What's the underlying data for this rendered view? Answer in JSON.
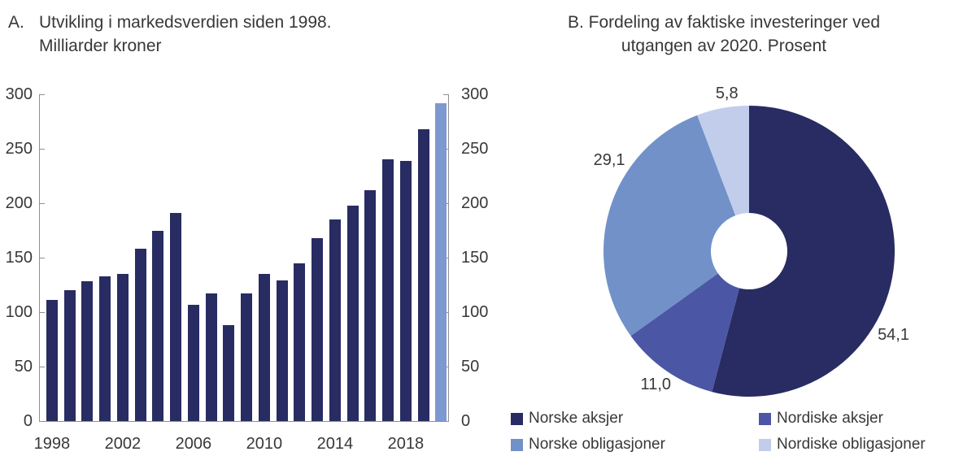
{
  "figure": {
    "panel_a": {
      "label": "A.",
      "title_line1": "Utvikling i markedsverdien siden 1998.",
      "title_line2": "Milliarder kroner"
    },
    "panel_b": {
      "title_line1": "B. Fordeling av faktiske investeringer ved",
      "title_line2": "utgangen av 2020. Prosent"
    }
  },
  "colors": {
    "navy": "#282c62",
    "medium_blue": "#4b57a4",
    "steel_blue": "#7191c8",
    "light_lavender": "#c2cdeb",
    "highlight_bar": "#7e99d1",
    "axis": "#8f8f8f",
    "text": "#383838"
  },
  "chart_data": [
    {
      "type": "bar",
      "title": "A. Utvikling i markedsverdien siden 1998. Milliarder kroner",
      "xlabel": "",
      "ylabel": "Milliarder kroner",
      "categories": [
        1998,
        1999,
        2000,
        2001,
        2002,
        2003,
        2004,
        2005,
        2006,
        2007,
        2008,
        2009,
        2010,
        2011,
        2012,
        2013,
        2014,
        2015,
        2016,
        2017,
        2018,
        2019,
        2020
      ],
      "values": [
        111,
        120,
        128,
        133,
        135,
        158,
        175,
        191,
        107,
        117,
        88,
        117,
        135,
        129,
        145,
        168,
        185,
        198,
        212,
        240,
        239,
        268,
        292
      ],
      "ylim": [
        0,
        300
      ],
      "yticks": [
        0,
        50,
        100,
        150,
        200,
        250,
        300
      ],
      "xticks": [
        1998,
        2002,
        2006,
        2010,
        2014,
        2018
      ],
      "grid": false,
      "dual_y_axis": true,
      "bar_color_key": "navy",
      "last_bar_color_key": "highlight_bar"
    },
    {
      "type": "pie",
      "donut": true,
      "title": "B. Fordeling av faktiske investeringer ved utgangen av 2020. Prosent",
      "start_angle_deg": 0,
      "direction": "clockwise",
      "legend_position": "bottom",
      "slices": [
        {
          "label": "Norske aksjer",
          "value": 54.1,
          "display": "54,1",
          "color_key": "navy",
          "label_angle_deg": 120,
          "label_radius": 205
        },
        {
          "label": "Nordiske aksjer",
          "value": 11.0,
          "display": "11,0",
          "color_key": "medium_blue",
          "label_angle_deg": 215,
          "label_radius": 200
        },
        {
          "label": "Norske obligasjoner",
          "value": 29.1,
          "display": "29,1",
          "color_key": "steel_blue",
          "label_angle_deg": 303,
          "label_radius": 205
        },
        {
          "label": "Nordiske obligasjoner",
          "value": 5.8,
          "display": "5,8",
          "color_key": "light_lavender",
          "label_angle_deg": 352,
          "label_radius": 196
        }
      ]
    }
  ]
}
